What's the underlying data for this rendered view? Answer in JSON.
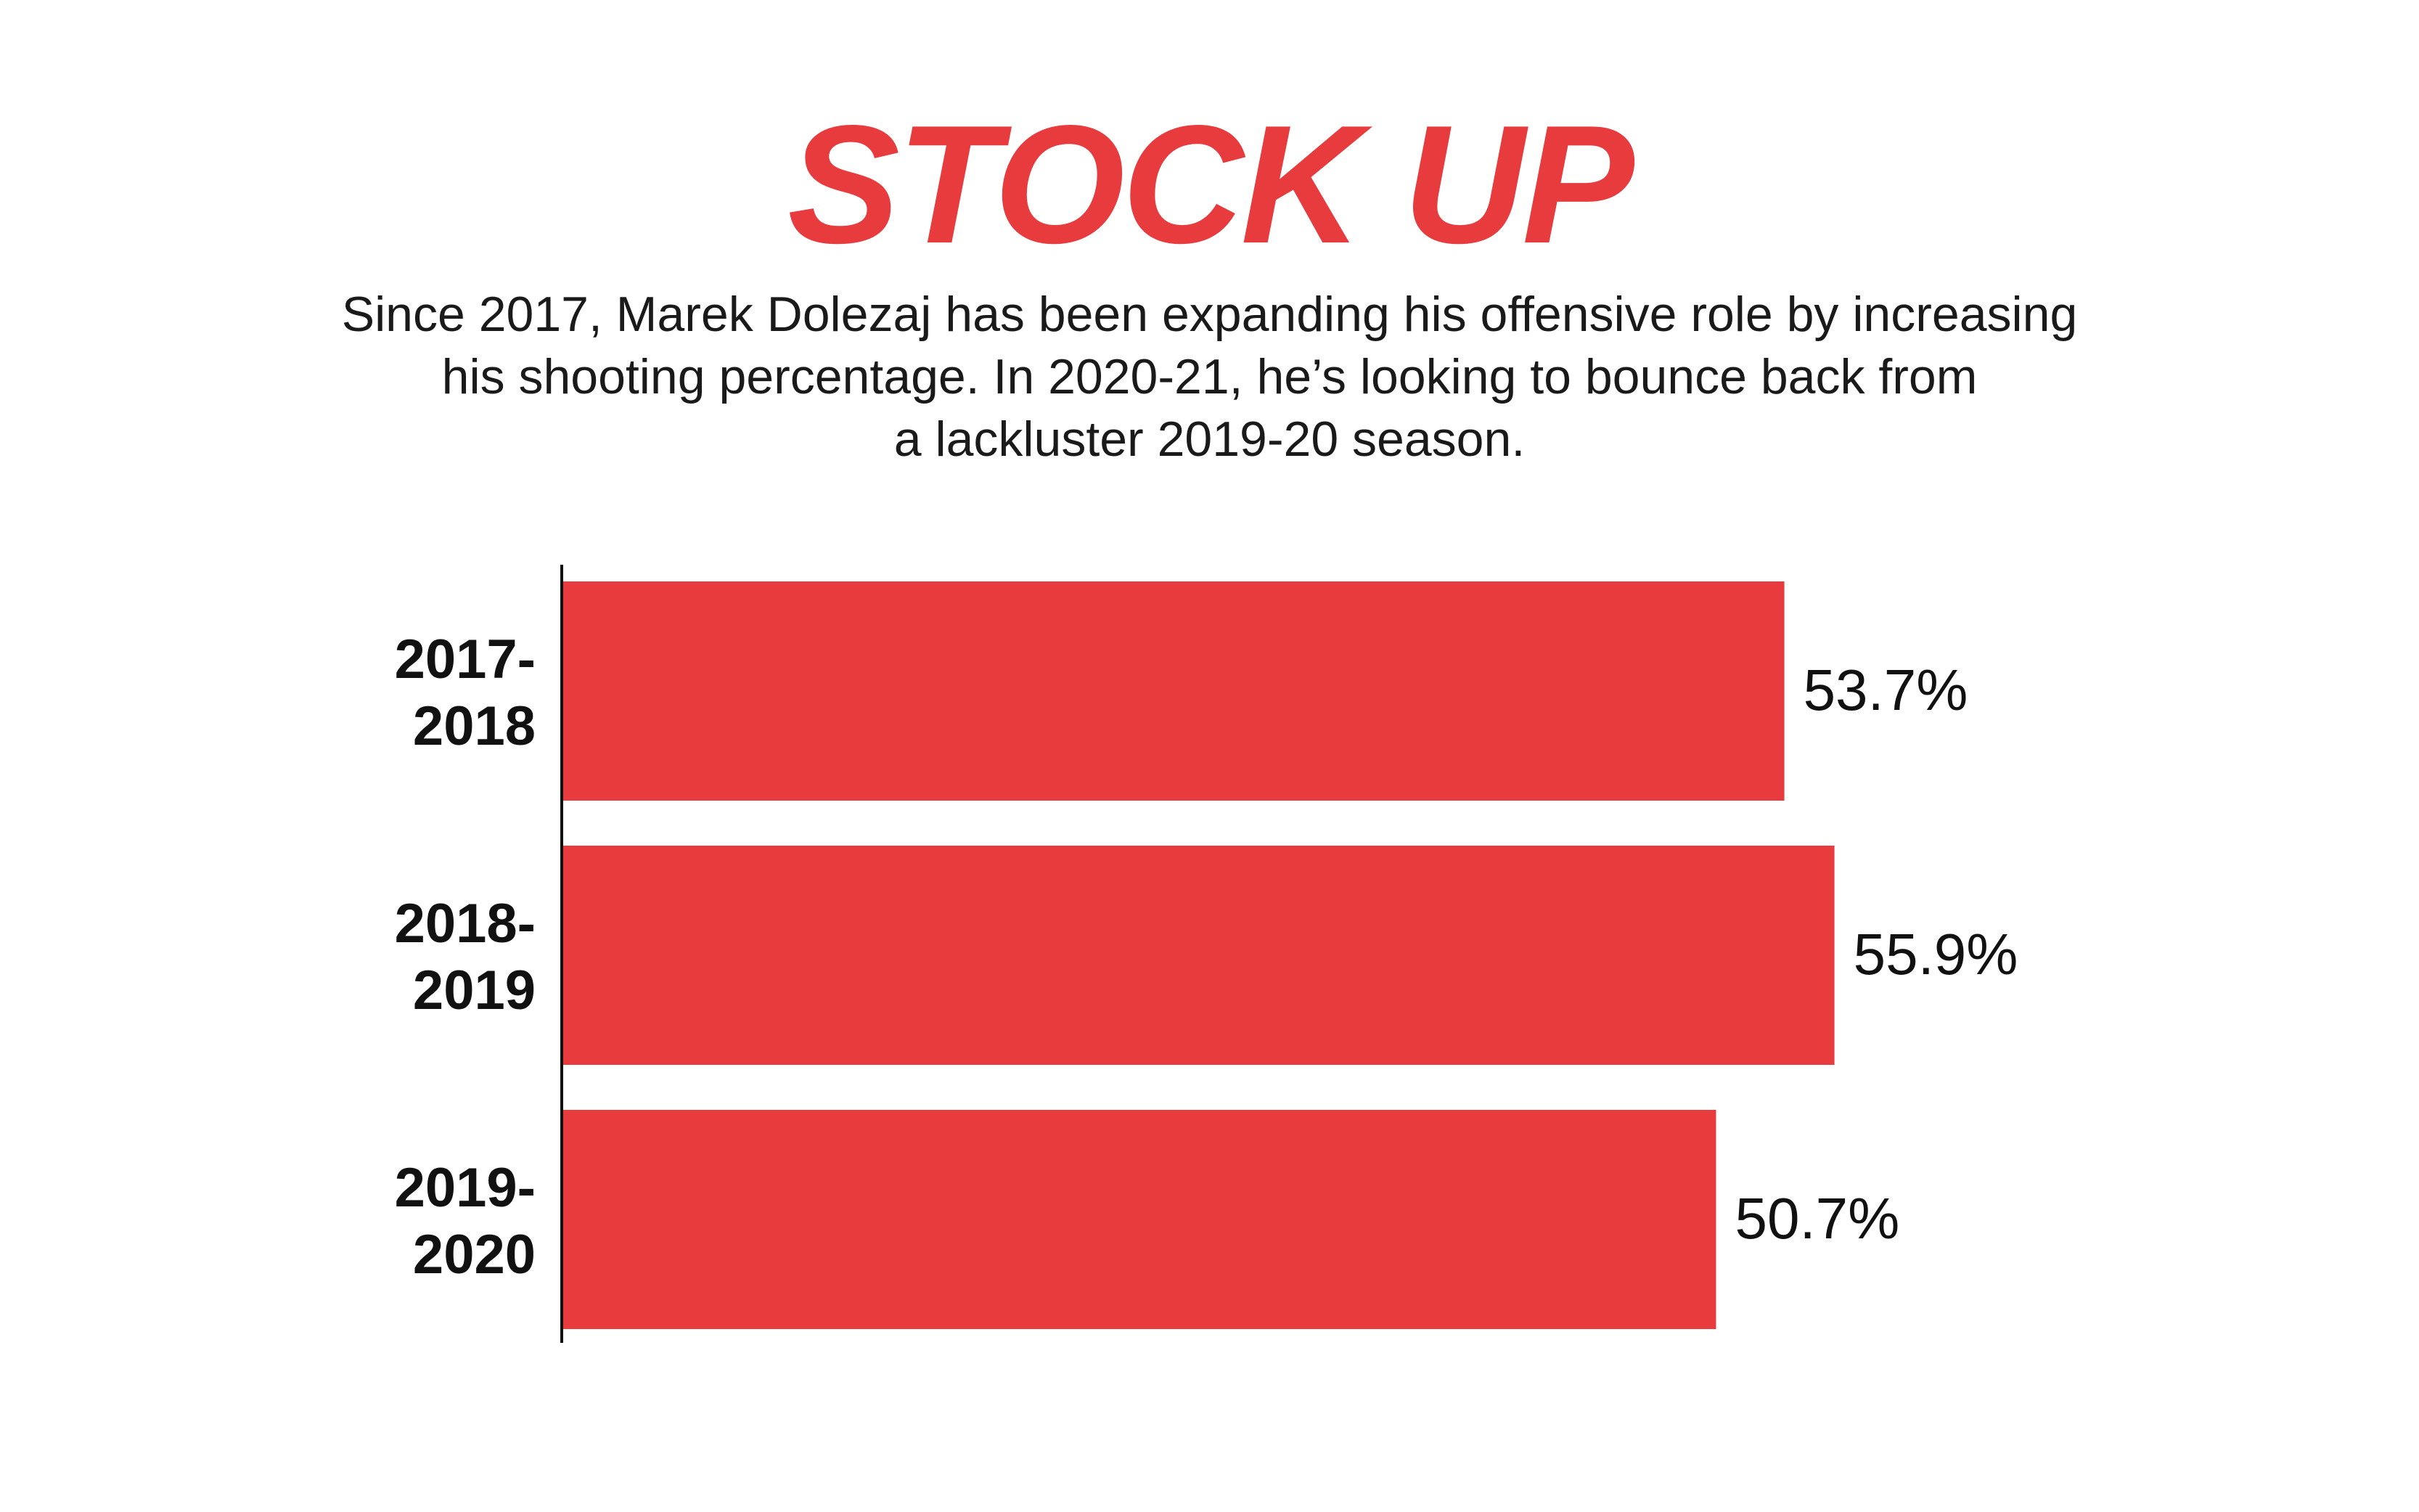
{
  "title": "STOCK UP",
  "subtitle_lines": [
    "Since 2017, Marek Dolezaj has been expanding his offensive role by increasing",
    "his shooting percentage. In 2020-21, he’s looking to bounce back from",
    "a lackluster 2019-20 season."
  ],
  "colors": {
    "accent": "#e83b3e",
    "text": "#111111",
    "axis": "#111111"
  },
  "chart_data": {
    "type": "bar",
    "orientation": "horizontal",
    "categories": [
      [
        "2017-",
        "2018"
      ],
      [
        "2018-",
        "2019"
      ],
      [
        "2019-",
        "2020"
      ]
    ],
    "values": [
      53.7,
      55.9,
      50.7
    ],
    "value_labels": [
      "53.7%",
      "55.9%",
      "50.7%"
    ],
    "xlim": [
      0,
      100
    ],
    "grid": false,
    "legend": "none"
  }
}
